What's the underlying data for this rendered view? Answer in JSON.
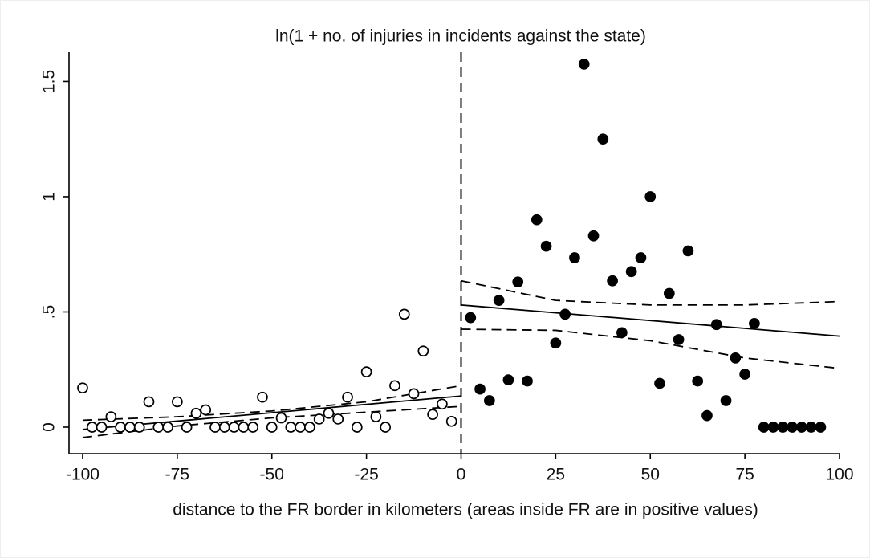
{
  "chart_data": {
    "type": "scatter",
    "title": "ln(1 + no. of injuries in incidents against the state)",
    "x_label": "distance to the FR border in kilometers (areas inside FR are in positive values)",
    "xlim": [
      -103.6,
      100
    ],
    "ylim": [
      -0.115,
      1.627
    ],
    "xticks": [
      -100,
      -75,
      -50,
      -25,
      0,
      25,
      50,
      75,
      100
    ],
    "yticks": [
      0,
      {
        "value": 0.5,
        "label": ".5"
      },
      1,
      1.5
    ],
    "grid": false,
    "series": [
      {
        "color": "#000000",
        "marker": "hollow",
        "x": [
          -100,
          -97.5,
          -95,
          -92.5,
          -90,
          -87.5,
          -85,
          -82.5,
          -80,
          -77.5,
          -75,
          -72.5,
          -70,
          -67.5,
          -65,
          -62.5,
          -60,
          -57.5,
          -55,
          -52.5,
          -50,
          -47.5,
          -45,
          -42.5,
          -40,
          -37.5,
          -35,
          -32.5,
          -30,
          -27.5,
          -25,
          -22.5,
          -20,
          -17.5,
          -15,
          -12.5,
          -10,
          -7.5,
          -5,
          -2.5
        ],
        "values": [
          0.17,
          0,
          0,
          0.045,
          0,
          0,
          0,
          0.11,
          0,
          0,
          0.11,
          0,
          0.06,
          0.075,
          0,
          0,
          0,
          0,
          0,
          0.13,
          0,
          0.04,
          0,
          0,
          0,
          0.035,
          0.06,
          0.035,
          0.13,
          0,
          0.24,
          0.045,
          0,
          0.18,
          0.49,
          0.145,
          0.33,
          0.055,
          0.1,
          0.025
        ]
      },
      {
        "color": "#000000",
        "marker": "filled",
        "x": [
          2.5,
          5,
          7.5,
          10,
          12.5,
          15,
          17.5,
          20,
          22.5,
          25,
          27.5,
          30,
          32.5,
          35,
          37.5,
          40,
          42.5,
          45,
          47.5,
          50,
          52.5,
          55,
          57.5,
          60,
          62.5,
          65,
          67.5,
          70,
          72.5,
          75,
          77.5,
          80,
          82.5,
          85,
          87.5,
          90,
          92.5,
          95
        ],
        "values": [
          0.475,
          0.165,
          0.115,
          0.55,
          0.205,
          0.63,
          0.2,
          0.9,
          0.785,
          0.365,
          0.49,
          0.735,
          1.575,
          0.83,
          1.25,
          0.635,
          0.41,
          0.675,
          0.735,
          1.0,
          0.19,
          0.58,
          0.38,
          0.765,
          0.2,
          0.05,
          0.445,
          0.115,
          0.3,
          0.23,
          0.45,
          0,
          0,
          0,
          0,
          0,
          0,
          0
        ]
      }
    ],
    "fit_lines": [
      {
        "style": "solid",
        "x": [
          -100,
          0
        ],
        "values": [
          -0.01,
          0.135
        ]
      },
      {
        "style": "dashed",
        "x": [
          -100,
          -75,
          -50,
          -25,
          0
        ],
        "values": [
          0.03,
          0.045,
          0.07,
          0.11,
          0.18
        ]
      },
      {
        "style": "dashed",
        "x": [
          -100,
          -75,
          -50,
          -25,
          0
        ],
        "values": [
          -0.045,
          0.005,
          0.04,
          0.065,
          0.09
        ]
      },
      {
        "style": "solid",
        "x": [
          0,
          100
        ],
        "values": [
          0.53,
          0.395
        ]
      },
      {
        "style": "dashed",
        "x": [
          0,
          25,
          50,
          75,
          100
        ],
        "values": [
          0.635,
          0.55,
          0.53,
          0.53,
          0.545
        ]
      },
      {
        "style": "dashed",
        "x": [
          0,
          25,
          50,
          75,
          100
        ],
        "values": [
          0.425,
          0.42,
          0.375,
          0.3,
          0.255
        ]
      }
    ],
    "vline": {
      "x": 0,
      "style": "dashed"
    }
  }
}
